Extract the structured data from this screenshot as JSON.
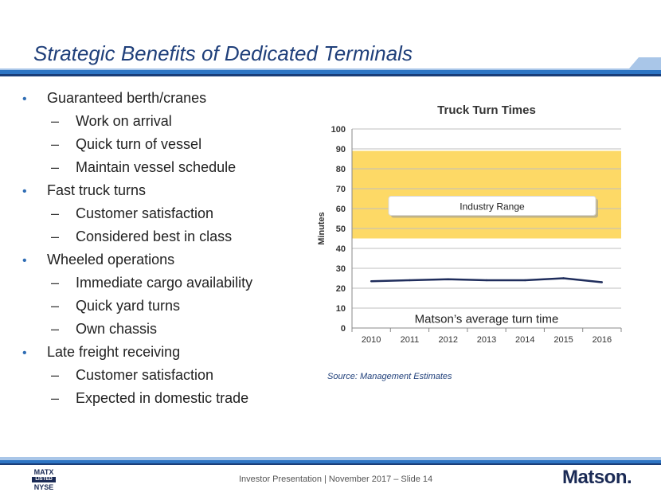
{
  "slide": {
    "title": "Strategic Benefits of Dedicated Terminals",
    "footer": "Investor Presentation | November 2017 – Slide 14",
    "badge": {
      "line1": "MATX",
      "line2": "LISTED",
      "line3": "NYSE"
    },
    "logo": "Matson.",
    "source_note": "Source: Management Estimates"
  },
  "bullets": [
    {
      "level": 1,
      "text": "Guaranteed berth/cranes"
    },
    {
      "level": 2,
      "text": "Work on arrival"
    },
    {
      "level": 2,
      "text": "Quick turn of vessel"
    },
    {
      "level": 2,
      "text": "Maintain vessel schedule"
    },
    {
      "level": 1,
      "text": "Fast truck turns"
    },
    {
      "level": 2,
      "text": "Customer satisfaction"
    },
    {
      "level": 2,
      "text": "Considered best in class"
    },
    {
      "level": 1,
      "text": "Wheeled operations"
    },
    {
      "level": 2,
      "text": "Immediate cargo availability"
    },
    {
      "level": 2,
      "text": "Quick yard turns"
    },
    {
      "level": 2,
      "text": "Own chassis"
    },
    {
      "level": 1,
      "text": "Late freight receiving"
    },
    {
      "level": 2,
      "text": "Customer satisfaction"
    },
    {
      "level": 2,
      "text": "Expected in domestic trade"
    }
  ],
  "chart_data": {
    "type": "line",
    "title": "Truck Turn Times",
    "xlabel": "",
    "ylabel": "Minutes",
    "categories": [
      "2010",
      "2011",
      "2012",
      "2013",
      "2014",
      "2015",
      "2016"
    ],
    "series": [
      {
        "values": [
          23.5,
          24,
          24.5,
          24,
          24,
          25,
          23
        ],
        "color": "#1f2d5c"
      }
    ],
    "range_band": {
      "label": "Industry Range",
      "low": 45,
      "high": 89,
      "color": "#fdd966"
    },
    "annotation": "Matson’s average turn time",
    "ylim": [
      0,
      100
    ],
    "yticks": [
      0,
      10,
      20,
      30,
      40,
      50,
      60,
      70,
      80,
      90,
      100
    ],
    "grid": true,
    "legend": "none"
  },
  "colors": {
    "title": "#1f3f7a",
    "bar_dark": "#1a3d78",
    "bar_mid": "#2e75c4",
    "bar_light": "#a9c6e8",
    "bullet": "#2f6db4"
  }
}
